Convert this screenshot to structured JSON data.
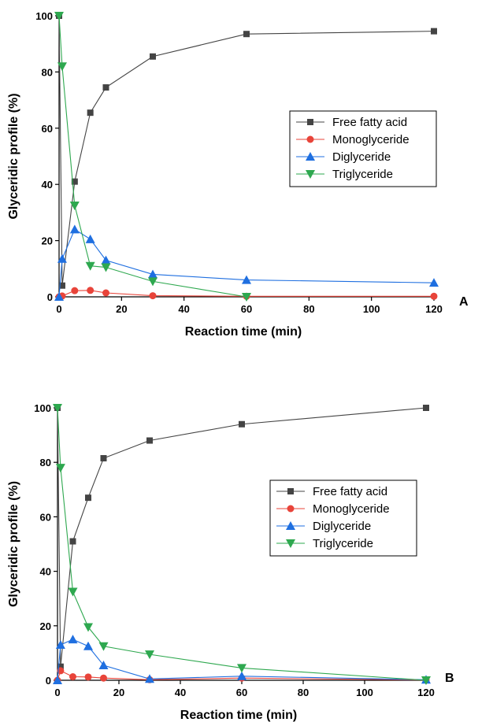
{
  "chart_data": [
    {
      "type": "line",
      "panel_label": "A",
      "xlabel": "Reaction time (min)",
      "ylabel": "Glyceridic profile (%)",
      "xlim": [
        0,
        120
      ],
      "ylim": [
        0,
        100
      ],
      "xticks": [
        0,
        20,
        40,
        60,
        80,
        100,
        120
      ],
      "yticks": [
        0,
        20,
        40,
        60,
        80,
        100
      ],
      "grid": false,
      "legend_position": "center-right",
      "series": [
        {
          "name": "Free fatty acid",
          "color": "#444444",
          "marker": "square",
          "x": [
            0,
            1,
            5,
            10,
            15,
            30,
            60,
            120
          ],
          "y": [
            100,
            4,
            41,
            65.5,
            74.5,
            85.5,
            93.5,
            94.5
          ]
        },
        {
          "name": "Monoglyceride",
          "color": "#e8443a",
          "marker": "circle",
          "x": [
            0,
            1,
            5,
            10,
            15,
            30,
            60,
            120
          ],
          "y": [
            0,
            0.3,
            2.2,
            2.3,
            1.4,
            0.4,
            0.2,
            0.2
          ]
        },
        {
          "name": "Diglyceride",
          "color": "#1f6fe0",
          "marker": "triangle-up",
          "x": [
            0,
            1,
            5,
            10,
            15,
            30,
            60,
            120
          ],
          "y": [
            0,
            13.5,
            24,
            20.5,
            13,
            8,
            6,
            5
          ]
        },
        {
          "name": "Triglyceride",
          "color": "#2ea84f",
          "marker": "triangle-down",
          "x": [
            0,
            1,
            5,
            10,
            15,
            30,
            60
          ],
          "y": [
            100,
            82,
            32.5,
            11,
            10.5,
            5.5,
            0
          ]
        }
      ]
    },
    {
      "type": "line",
      "panel_label": "B",
      "xlabel": "Reaction time (min)",
      "ylabel": "Glyceridic profile (%)",
      "xlim": [
        0,
        120
      ],
      "ylim": [
        0,
        100
      ],
      "xticks": [
        0,
        20,
        40,
        60,
        80,
        100,
        120
      ],
      "yticks": [
        0,
        20,
        40,
        60,
        80,
        100
      ],
      "grid": false,
      "legend_position": "center-right",
      "series": [
        {
          "name": "Free fatty acid",
          "color": "#444444",
          "marker": "square",
          "x": [
            0,
            1,
            5,
            10,
            15,
            30,
            60,
            120
          ],
          "y": [
            100,
            5,
            51,
            67,
            81.5,
            88,
            94,
            100
          ]
        },
        {
          "name": "Monoglyceride",
          "color": "#e8443a",
          "marker": "circle",
          "x": [
            0,
            1,
            5,
            10,
            15,
            30,
            60,
            120
          ],
          "y": [
            0,
            3.5,
            1.3,
            1.2,
            0.8,
            0.2,
            0.8,
            0.1
          ]
        },
        {
          "name": "Diglyceride",
          "color": "#1f6fe0",
          "marker": "triangle-up",
          "x": [
            0,
            1,
            5,
            10,
            15,
            30,
            60,
            120
          ],
          "y": [
            0,
            13,
            15,
            12.5,
            5.5,
            0.5,
            1.5,
            0.2
          ]
        },
        {
          "name": "Triglyceride",
          "color": "#2ea84f",
          "marker": "triangle-down",
          "x": [
            0,
            1,
            5,
            10,
            15,
            30,
            60,
            120
          ],
          "y": [
            100,
            78,
            32.5,
            19.5,
            12.5,
            9.5,
            4.5,
            0
          ]
        }
      ]
    }
  ]
}
